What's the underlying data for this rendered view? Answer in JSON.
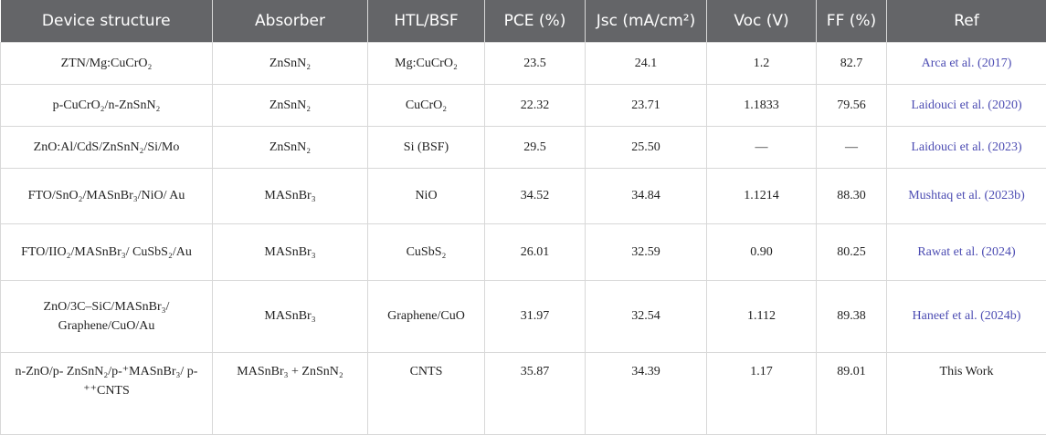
{
  "table": {
    "header": [
      "Device structure",
      "Absorber",
      "HTL/BSF",
      "PCE (%)",
      "Jsc (mA/cm²)",
      "Voc (V)",
      "FF (%)",
      "Ref"
    ],
    "rows": [
      [
        "ZTN/Mg:CuCrO₂",
        "ZnSnN₂",
        "Mg:CuCrO₂",
        "23.5",
        "24.1",
        "1.2",
        "82.7",
        "Arca et al. (2017)"
      ],
      [
        "p-CuCrO₂/n-ZnSnN₂",
        "ZnSnN₂",
        "CuCrO₂",
        "22.32",
        "23.71",
        "1.1833",
        "79.56",
        "Laidouci et al. (2020)"
      ],
      [
        "ZnO:Al/CdS/ZnSnN₂/Si/Mo",
        "ZnSnN₂",
        "Si (BSF)",
        "29.5",
        "25.50",
        "—",
        "—",
        "Laidouci et al. (2023)"
      ],
      [
        "FTO/SnO₂/MASnBr₃/NiO/ Au",
        "MASnBr₃",
        "NiO",
        "34.52",
        "34.84",
        "1.1214",
        "88.30",
        "Mushtaq et al. (2023b)"
      ],
      [
        "FTO/IIO₂/MASnBr₃/ CuSbS₂/Au",
        "MASnBr₃",
        "CuSbS₂",
        "26.01",
        "32.59",
        "0.90",
        "80.25",
        "Rawat et al. (2024)"
      ],
      [
        "ZnO/3C–SiC/MASnBr₃/ Graphene/CuO/Au",
        "MASnBr₃",
        "Graphene/CuO",
        "31.97",
        "32.54",
        "1.112",
        "89.38",
        "Haneef et al. (2024b)"
      ],
      [
        "n-ZnO/p- ZnSnN₂/p-⁺MASnBr₃/ p-⁺⁺CNTS",
        "MASnBr₃ + ZnSnN₂",
        "CNTS",
        "35.87",
        "34.39",
        "1.17",
        "89.01",
        "This Work"
      ]
    ]
  }
}
